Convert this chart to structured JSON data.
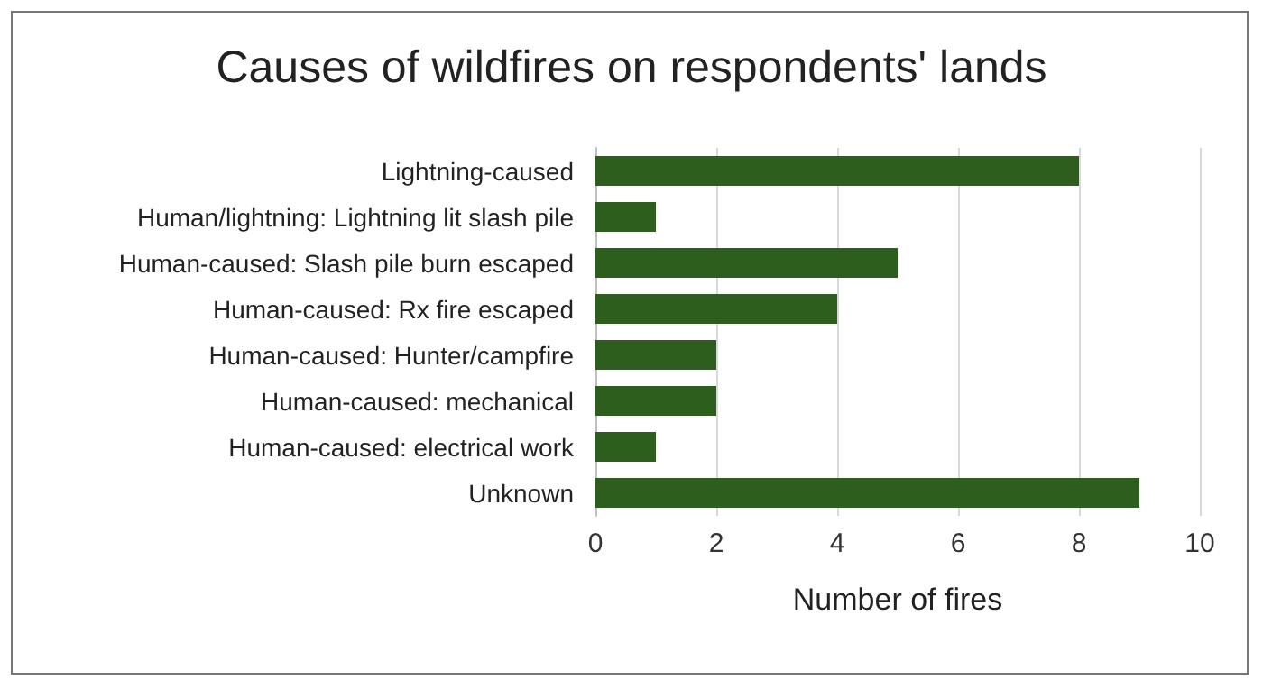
{
  "chart_data": {
    "type": "bar",
    "orientation": "horizontal",
    "title": "Causes of wildfires on respondents' lands",
    "xlabel": "Number of fires",
    "categories": [
      "Lightning-caused",
      "Human/lightning: Lightning lit slash pile",
      "Human-caused: Slash pile burn escaped",
      "Human-caused: Rx fire escaped",
      "Human-caused: Hunter/campfire",
      "Human-caused: mechanical",
      "Human-caused: electrical work",
      "Unknown"
    ],
    "values": [
      8,
      1,
      5,
      4,
      2,
      2,
      1,
      9
    ],
    "color": "#2e5e1e",
    "xlim": [
      0,
      10
    ],
    "xticks": [
      0,
      2,
      4,
      6,
      8,
      10
    ],
    "grid": "x"
  }
}
